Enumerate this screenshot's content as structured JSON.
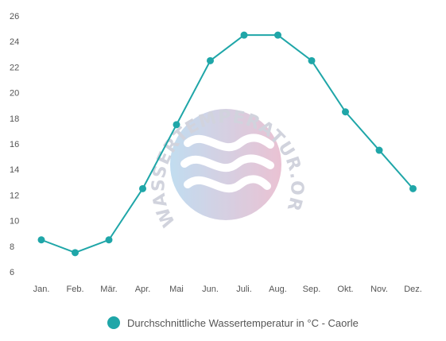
{
  "chart_data": {
    "type": "line",
    "categories": [
      "Jan.",
      "Feb.",
      "Mär.",
      "Apr.",
      "Mai",
      "Jun.",
      "Juli.",
      "Aug.",
      "Sep.",
      "Okt.",
      "Nov.",
      "Dez."
    ],
    "series": [
      {
        "name": "Durchschnittliche Wassertemperatur in °C - Caorle",
        "values": [
          8.5,
          7.5,
          8.5,
          12.5,
          17.5,
          22.5,
          24.5,
          24.5,
          22.5,
          18.5,
          15.5,
          12.5
        ]
      }
    ],
    "yticks": [
      6,
      8,
      10,
      12,
      14,
      16,
      18,
      20,
      22,
      24,
      26
    ],
    "ylim": [
      6,
      26
    ],
    "grid": false,
    "legend": "bottom-center",
    "colors": {
      "series": "#1fa6a8",
      "text": "#555555"
    },
    "watermark": "WASSERTEMPERATUR.ORG"
  }
}
